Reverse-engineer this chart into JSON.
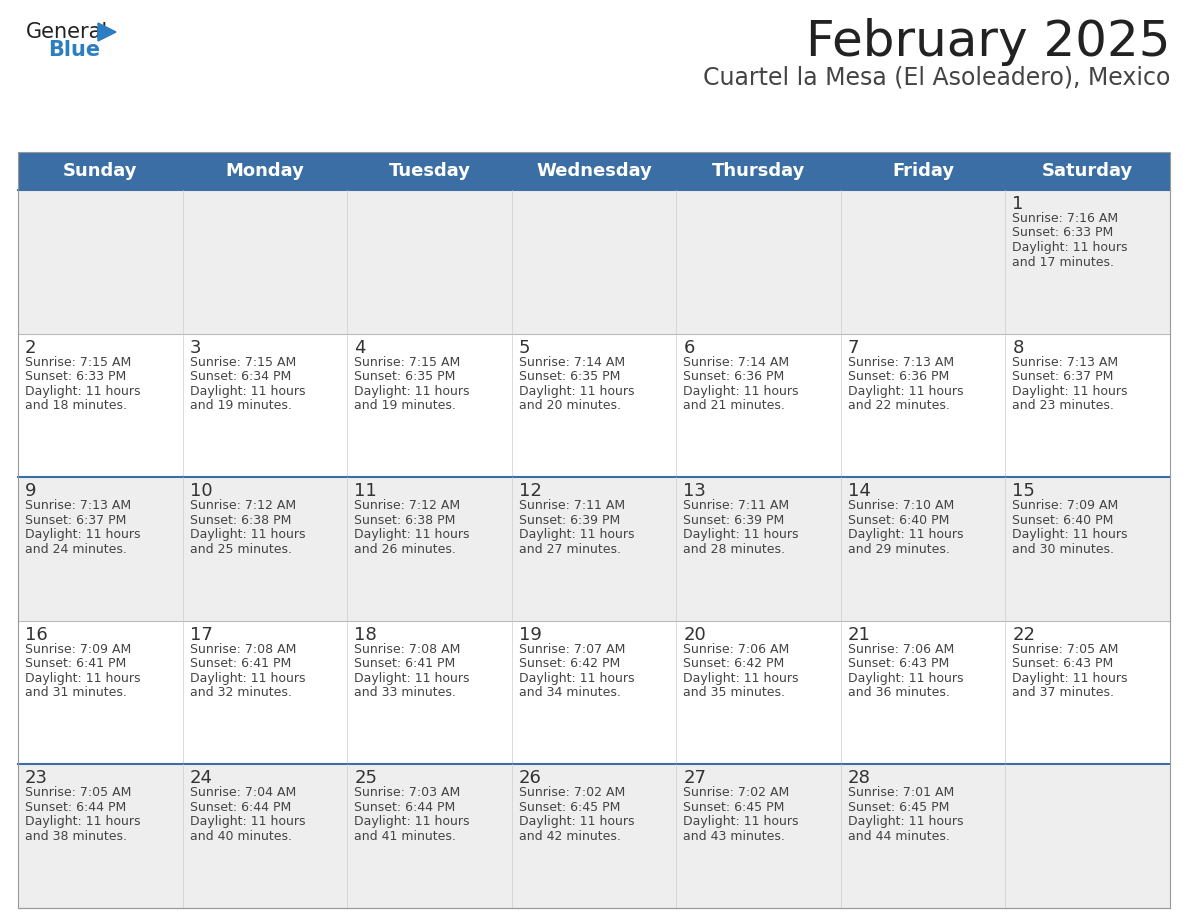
{
  "title": "February 2025",
  "subtitle": "Cuartel la Mesa (El Asoleadero), Mexico",
  "header_color": "#3A6EA5",
  "header_text_color": "#FFFFFF",
  "bg_color": "#FFFFFF",
  "cell_bg_even": "#EEEEEE",
  "cell_bg_odd": "#FFFFFF",
  "day_headers": [
    "Sunday",
    "Monday",
    "Tuesday",
    "Wednesday",
    "Thursday",
    "Friday",
    "Saturday"
  ],
  "weeks": [
    [
      {
        "day": "",
        "sunrise": "",
        "sunset": "",
        "daylight": ""
      },
      {
        "day": "",
        "sunrise": "",
        "sunset": "",
        "daylight": ""
      },
      {
        "day": "",
        "sunrise": "",
        "sunset": "",
        "daylight": ""
      },
      {
        "day": "",
        "sunrise": "",
        "sunset": "",
        "daylight": ""
      },
      {
        "day": "",
        "sunrise": "",
        "sunset": "",
        "daylight": ""
      },
      {
        "day": "",
        "sunrise": "",
        "sunset": "",
        "daylight": ""
      },
      {
        "day": "1",
        "sunrise": "7:16 AM",
        "sunset": "6:33 PM",
        "daylight": "11 hours and 17 minutes."
      }
    ],
    [
      {
        "day": "2",
        "sunrise": "7:15 AM",
        "sunset": "6:33 PM",
        "daylight": "11 hours and 18 minutes."
      },
      {
        "day": "3",
        "sunrise": "7:15 AM",
        "sunset": "6:34 PM",
        "daylight": "11 hours and 19 minutes."
      },
      {
        "day": "4",
        "sunrise": "7:15 AM",
        "sunset": "6:35 PM",
        "daylight": "11 hours and 19 minutes."
      },
      {
        "day": "5",
        "sunrise": "7:14 AM",
        "sunset": "6:35 PM",
        "daylight": "11 hours and 20 minutes."
      },
      {
        "day": "6",
        "sunrise": "7:14 AM",
        "sunset": "6:36 PM",
        "daylight": "11 hours and 21 minutes."
      },
      {
        "day": "7",
        "sunrise": "7:13 AM",
        "sunset": "6:36 PM",
        "daylight": "11 hours and 22 minutes."
      },
      {
        "day": "8",
        "sunrise": "7:13 AM",
        "sunset": "6:37 PM",
        "daylight": "11 hours and 23 minutes."
      }
    ],
    [
      {
        "day": "9",
        "sunrise": "7:13 AM",
        "sunset": "6:37 PM",
        "daylight": "11 hours and 24 minutes."
      },
      {
        "day": "10",
        "sunrise": "7:12 AM",
        "sunset": "6:38 PM",
        "daylight": "11 hours and 25 minutes."
      },
      {
        "day": "11",
        "sunrise": "7:12 AM",
        "sunset": "6:38 PM",
        "daylight": "11 hours and 26 minutes."
      },
      {
        "day": "12",
        "sunrise": "7:11 AM",
        "sunset": "6:39 PM",
        "daylight": "11 hours and 27 minutes."
      },
      {
        "day": "13",
        "sunrise": "7:11 AM",
        "sunset": "6:39 PM",
        "daylight": "11 hours and 28 minutes."
      },
      {
        "day": "14",
        "sunrise": "7:10 AM",
        "sunset": "6:40 PM",
        "daylight": "11 hours and 29 minutes."
      },
      {
        "day": "15",
        "sunrise": "7:09 AM",
        "sunset": "6:40 PM",
        "daylight": "11 hours and 30 minutes."
      }
    ],
    [
      {
        "day": "16",
        "sunrise": "7:09 AM",
        "sunset": "6:41 PM",
        "daylight": "11 hours and 31 minutes."
      },
      {
        "day": "17",
        "sunrise": "7:08 AM",
        "sunset": "6:41 PM",
        "daylight": "11 hours and 32 minutes."
      },
      {
        "day": "18",
        "sunrise": "7:08 AM",
        "sunset": "6:41 PM",
        "daylight": "11 hours and 33 minutes."
      },
      {
        "day": "19",
        "sunrise": "7:07 AM",
        "sunset": "6:42 PM",
        "daylight": "11 hours and 34 minutes."
      },
      {
        "day": "20",
        "sunrise": "7:06 AM",
        "sunset": "6:42 PM",
        "daylight": "11 hours and 35 minutes."
      },
      {
        "day": "21",
        "sunrise": "7:06 AM",
        "sunset": "6:43 PM",
        "daylight": "11 hours and 36 minutes."
      },
      {
        "day": "22",
        "sunrise": "7:05 AM",
        "sunset": "6:43 PM",
        "daylight": "11 hours and 37 minutes."
      }
    ],
    [
      {
        "day": "23",
        "sunrise": "7:05 AM",
        "sunset": "6:44 PM",
        "daylight": "11 hours and 38 minutes."
      },
      {
        "day": "24",
        "sunrise": "7:04 AM",
        "sunset": "6:44 PM",
        "daylight": "11 hours and 40 minutes."
      },
      {
        "day": "25",
        "sunrise": "7:03 AM",
        "sunset": "6:44 PM",
        "daylight": "11 hours and 41 minutes."
      },
      {
        "day": "26",
        "sunrise": "7:02 AM",
        "sunset": "6:45 PM",
        "daylight": "11 hours and 42 minutes."
      },
      {
        "day": "27",
        "sunrise": "7:02 AM",
        "sunset": "6:45 PM",
        "daylight": "11 hours and 43 minutes."
      },
      {
        "day": "28",
        "sunrise": "7:01 AM",
        "sunset": "6:45 PM",
        "daylight": "11 hours and 44 minutes."
      },
      {
        "day": "",
        "sunrise": "",
        "sunset": "",
        "daylight": ""
      }
    ]
  ],
  "logo_text1": "General",
  "logo_text2": "Blue",
  "logo_color1": "#222222",
  "logo_color2": "#2B7EC1",
  "logo_triangle_color": "#2B7EC1",
  "title_fontsize": 36,
  "subtitle_fontsize": 17,
  "header_fontsize": 13,
  "day_num_fontsize": 13,
  "cell_text_fontsize": 9
}
